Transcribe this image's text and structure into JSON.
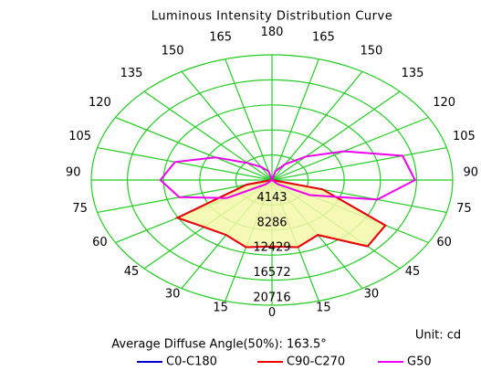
{
  "chart_data": {
    "type": "polar",
    "title": "Luminous Intensity Distribution Curve",
    "rlim": [
      0,
      20716
    ],
    "rticks": [
      4143,
      8286,
      12429,
      16572,
      20716
    ],
    "thetaticks": [
      0,
      15,
      30,
      45,
      60,
      75,
      90,
      105,
      120,
      135,
      150,
      165,
      180,
      {
        "value": -15,
        "label": "15"
      },
      {
        "value": -30,
        "label": "30"
      },
      {
        "value": -45,
        "label": "45"
      },
      {
        "value": -60,
        "label": "60"
      },
      {
        "value": -75,
        "label": "75"
      },
      {
        "value": -90,
        "label": "90"
      },
      {
        "value": -105,
        "label": "105"
      },
      {
        "value": -120,
        "label": "120"
      },
      {
        "value": -135,
        "label": "135"
      },
      {
        "value": -150,
        "label": "150"
      },
      {
        "value": -165,
        "label": "165"
      }
    ],
    "grid_color": "#22cc22",
    "fill_color": "#f4f7a8",
    "series": [
      {
        "name": "C0-C180",
        "color": "#0000cc",
        "theta": [
          -90,
          -75,
          -60,
          -45,
          -30,
          -15,
          0,
          15,
          30,
          45,
          60,
          75,
          90
        ],
        "values": [
          0,
          3000,
          12500,
          11000,
          10500,
          11500,
          11000,
          11500,
          10500,
          15500,
          15000,
          6000,
          0
        ]
      },
      {
        "name": "C90-C270",
        "color": "#ee0000",
        "fill": true,
        "theta": [
          -90,
          -75,
          -60,
          -45,
          -30,
          -15,
          0,
          15,
          30,
          45,
          60,
          75,
          90
        ],
        "values": [
          0,
          3000,
          12500,
          11000,
          10500,
          11500,
          11000,
          11500,
          10500,
          15500,
          15000,
          6000,
          0
        ]
      },
      {
        "name": "G50",
        "color": "#ee00ee",
        "theta": [
          -180,
          -165,
          -150,
          -135,
          -120,
          -105,
          -90,
          -75,
          -60,
          -45,
          0,
          45,
          60,
          75,
          90,
          105,
          120,
          135,
          150,
          165,
          180
        ],
        "values": [
          0,
          1500,
          2500,
          4000,
          7500,
          11500,
          12800,
          11000,
          6000,
          1000,
          0,
          1000,
          5000,
          12500,
          16400,
          15500,
          9500,
          5500,
          3000,
          1500,
          0
        ]
      }
    ],
    "annotations": [
      "Unit: cd",
      "Average Diffuse Angle(50%): 163.5°"
    ]
  }
}
